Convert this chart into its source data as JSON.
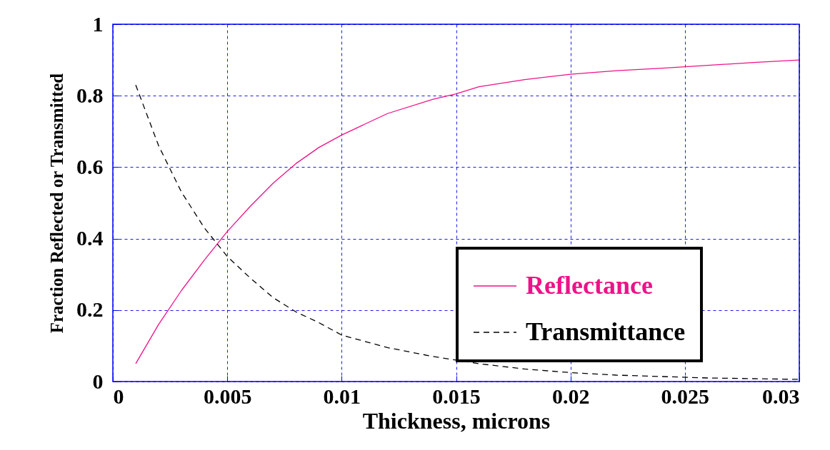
{
  "chart_data": {
    "type": "line",
    "xlabel": "Thickness, microns",
    "ylabel": "Fraction Reflected or Transmitted",
    "x": [
      0.001,
      0.002,
      0.003,
      0.004,
      0.005,
      0.006,
      0.007,
      0.008,
      0.009,
      0.01,
      0.012,
      0.014,
      0.015,
      0.016,
      0.018,
      0.02,
      0.022,
      0.024,
      0.026,
      0.028,
      0.03
    ],
    "series": [
      {
        "name": "Reflectance",
        "color": "#ee1188",
        "line_style": "solid",
        "values": [
          0.05,
          0.16,
          0.255,
          0.34,
          0.42,
          0.49,
          0.555,
          0.61,
          0.655,
          0.69,
          0.75,
          0.79,
          0.805,
          0.825,
          0.845,
          0.86,
          0.87,
          0.877,
          0.885,
          0.893,
          0.9
        ]
      },
      {
        "name": "Transmittance",
        "color": "#000000",
        "line_style": "dashed",
        "values": [
          0.83,
          0.66,
          0.53,
          0.43,
          0.35,
          0.29,
          0.235,
          0.195,
          0.165,
          0.13,
          0.095,
          0.07,
          0.06,
          0.05,
          0.035,
          0.025,
          0.018,
          0.014,
          0.01,
          0.008,
          0.006
        ]
      }
    ],
    "xlim": [
      0,
      0.03
    ],
    "xticks": [
      0,
      0.005,
      0.01,
      0.015,
      0.02,
      0.025,
      0.03
    ],
    "ylim": [
      0,
      1
    ],
    "yticks": [
      0,
      0.2,
      0.4,
      0.6,
      0.8,
      1
    ],
    "grid": true,
    "legend": "bottom right"
  }
}
